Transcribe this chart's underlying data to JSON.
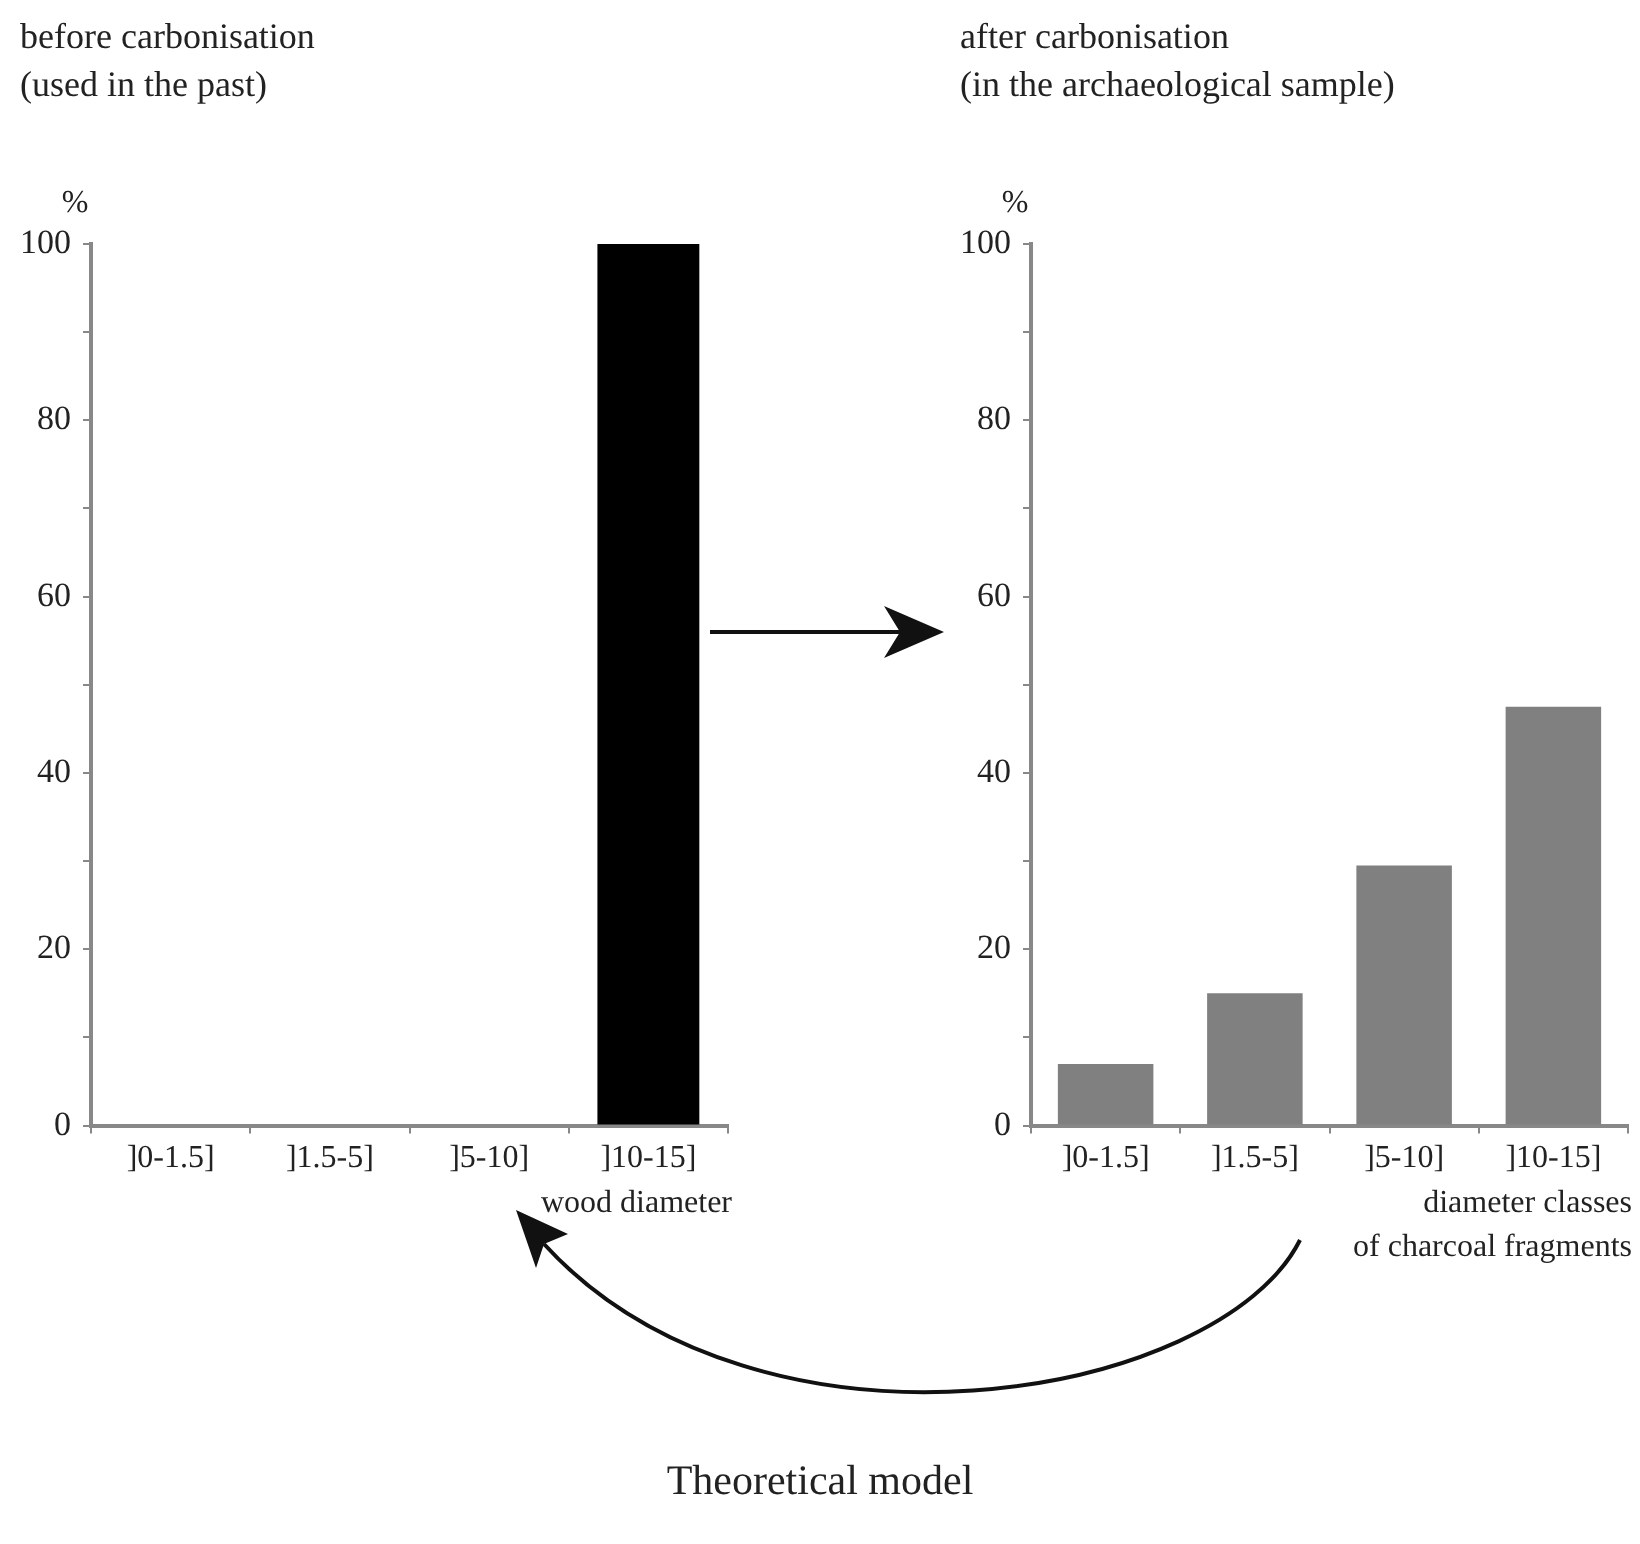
{
  "chart_data": [
    {
      "type": "bar",
      "title": "before carbonisation\n(used in the past)",
      "ylabel": "%",
      "xlabel": "wood diameter",
      "categories": [
        "]0-1.5]",
        "]1.5-5]",
        "]5-10]",
        "]10-15]"
      ],
      "values": [
        0,
        0,
        0,
        100
      ],
      "color": "#000000",
      "ylim": [
        0,
        100
      ],
      "yticks": [
        0,
        {
          "value": 10,
          "label": null
        },
        20,
        {
          "value": 30,
          "label": null
        },
        40,
        {
          "value": 50,
          "label": null
        },
        60,
        {
          "value": 70,
          "label": null
        },
        80,
        {
          "value": 90,
          "label": null
        },
        100
      ],
      "annotations": [
        "Theoretical model"
      ]
    },
    {
      "type": "bar",
      "title": "after carbonisation\n(in the archaeological sample)",
      "ylabel": "%",
      "xlabel": "diameter classes\nof charcoal fragments",
      "categories": [
        "]0-1.5]",
        "]1.5-5]",
        "]5-10]",
        "]10-15]"
      ],
      "values": [
        7,
        15,
        29.5,
        47.5
      ],
      "color": "#808080",
      "ylim": [
        0,
        100
      ],
      "yticks": [
        0,
        {
          "value": 10,
          "label": null
        },
        20,
        {
          "value": 30,
          "label": null
        },
        40,
        {
          "value": 50,
          "label": null
        },
        60,
        {
          "value": 70,
          "label": null
        },
        80,
        {
          "value": 90,
          "label": null
        },
        100
      ]
    }
  ]
}
